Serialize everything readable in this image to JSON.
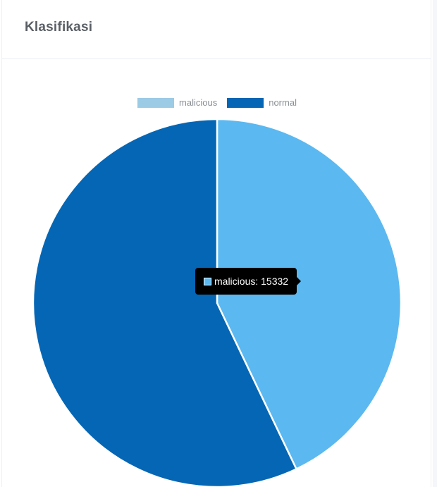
{
  "card": {
    "title": "Klasifikasi"
  },
  "colors": {
    "malicious_legend": "#9ccbe6",
    "malicious_slice": "#5bb8f0",
    "normal": "#0466b4"
  },
  "chart_data": {
    "type": "pie",
    "labels": [
      "malicious",
      "normal"
    ],
    "values": [
      15332,
      20400
    ],
    "legend_position": "top",
    "tooltip": {
      "label": "malicious",
      "value": 15332,
      "text": "malicious: 15332"
    }
  }
}
